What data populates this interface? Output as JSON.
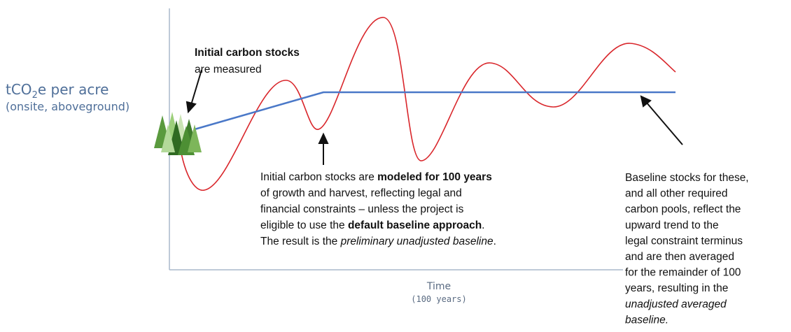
{
  "y_axis_label": {
    "parts": [
      "tCO",
      "2",
      "e per acre"
    ],
    "note": "(onsite, aboveground)"
  },
  "x_axis_label": {
    "title": "Time",
    "note": "(100 years)"
  },
  "initial_note": {
    "lines": [
      [
        "Initial carbon stocks"
      ],
      [
        "are measured"
      ]
    ]
  },
  "modeled_note": {
    "lines": [
      [
        "Initial carbon stocks are ",
        "modeled for 100 years"
      ],
      [
        "of growth and harvest, reflecting legal and"
      ],
      [
        "financial constraints – unless the project is"
      ],
      [
        "eligible to use the ",
        "default baseline approach",
        "."
      ],
      [
        "The result is the ",
        "preliminary unadjusted baseline",
        "."
      ]
    ]
  },
  "baseline_note": {
    "lines": [
      [
        "Baseline stocks for these,"
      ],
      [
        "and all other required"
      ],
      [
        "carbon pools, reflect the"
      ],
      [
        "upward trend to the"
      ],
      [
        "legal constraint terminus"
      ],
      [
        "and are then averaged"
      ],
      [
        "for the remainder of 100"
      ],
      [
        "years, resulting in the"
      ],
      [
        "unadjusted averaged"
      ],
      [
        "baseline."
      ]
    ]
  }
}
